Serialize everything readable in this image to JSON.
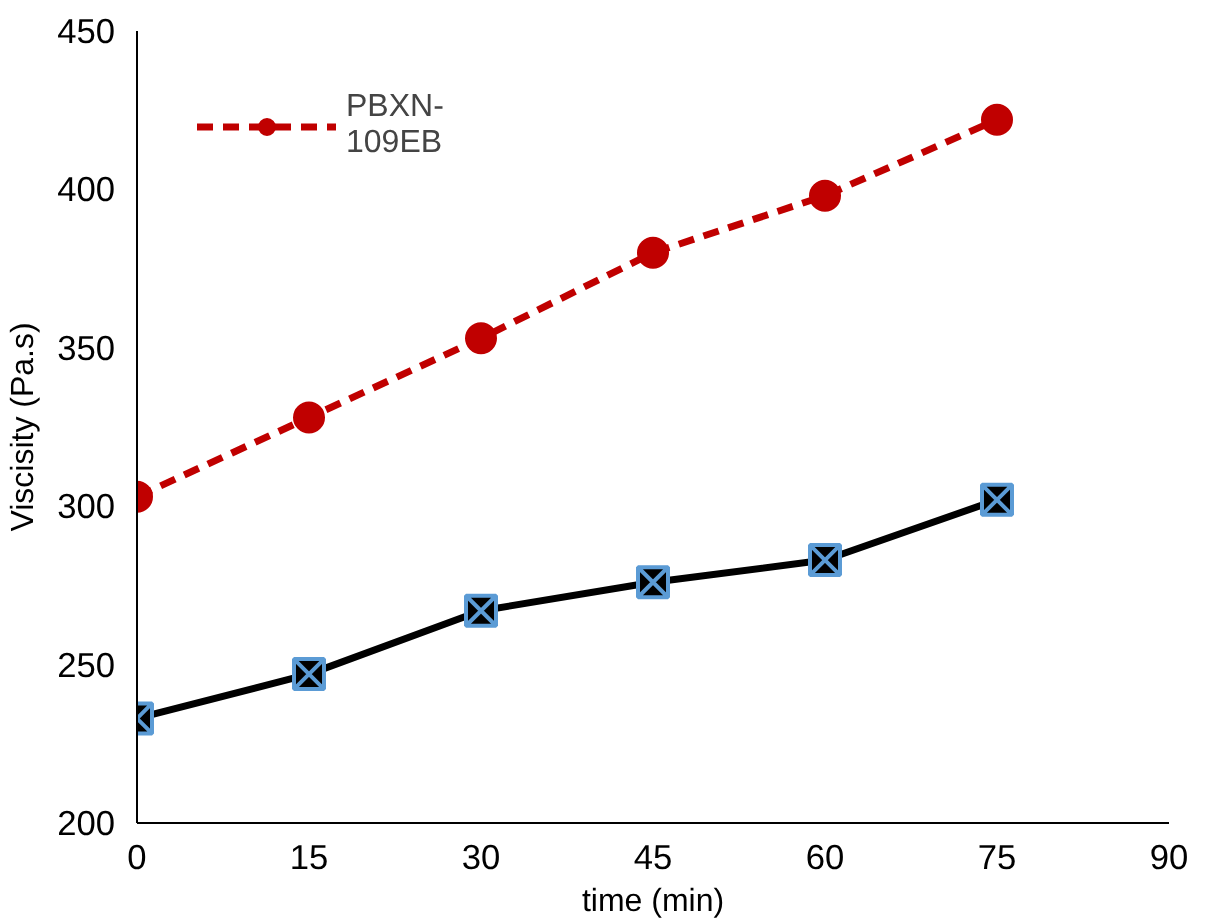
{
  "chart_data": {
    "type": "line",
    "xlabel": "time (min)",
    "ylabel": "Viscisity (Pa.s)",
    "x": [
      0,
      15,
      30,
      45,
      60,
      75
    ],
    "series": [
      {
        "name": "PBXN-\n109EB",
        "color": "#c00000",
        "values": [
          303,
          328,
          353,
          380,
          398,
          422
        ],
        "marker": "circle",
        "line_style": "dashed"
      },
      {
        "color": "#000000",
        "values": [
          233,
          247,
          267,
          276,
          283,
          302
        ],
        "marker": "cross",
        "line_style": "solid"
      }
    ],
    "xlim": [
      0,
      90
    ],
    "xticks": [
      0,
      15,
      30,
      45,
      60,
      75,
      90
    ],
    "ylim": [
      200,
      450
    ],
    "yticks": [
      200,
      250,
      300,
      350,
      400,
      450
    ],
    "grid": false,
    "legend": "top left"
  }
}
